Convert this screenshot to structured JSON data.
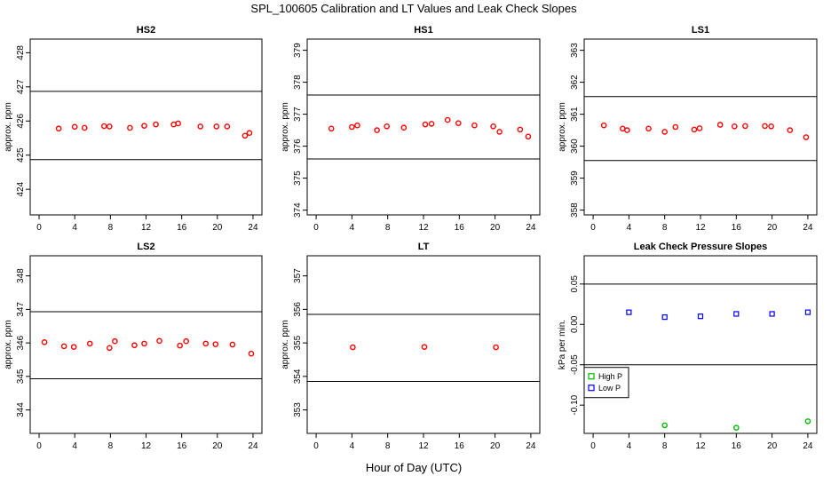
{
  "page": {
    "title": "SPL_100605  Calibration and LT Values and Leak Check Slopes",
    "xlabel": "Hour of Day (UTC)"
  },
  "colors": {
    "cal_points": "#ff0000",
    "high_p": "#00bb00",
    "low_p": "#0000ff",
    "lines": "#000000"
  },
  "chart_data": [
    {
      "type": "scatter",
      "title": "HS2",
      "ylabel": "approx. ppm",
      "xlim": [
        -1,
        25
      ],
      "ylim": [
        423.25,
        428.4
      ],
      "xticks": [
        0,
        4,
        8,
        12,
        16,
        20,
        24
      ],
      "yticks": [
        424,
        425,
        426,
        427,
        428
      ],
      "hlines": [
        426.87,
        424.87
      ],
      "series": [
        {
          "marker": "circle",
          "color": "#ff0000",
          "points": [
            [
              2.2,
              425.78
            ],
            [
              4.0,
              425.83
            ],
            [
              5.1,
              425.8
            ],
            [
              7.3,
              425.85
            ],
            [
              7.9,
              425.84
            ],
            [
              10.2,
              425.8
            ],
            [
              11.8,
              425.86
            ],
            [
              13.1,
              425.9
            ],
            [
              15.1,
              425.9
            ],
            [
              15.6,
              425.93
            ],
            [
              18.1,
              425.84
            ],
            [
              19.9,
              425.84
            ],
            [
              21.1,
              425.84
            ],
            [
              23.1,
              425.57
            ],
            [
              23.6,
              425.65
            ]
          ]
        }
      ]
    },
    {
      "type": "scatter",
      "title": "HS1",
      "ylabel": "approx. ppm",
      "xlim": [
        -1,
        25
      ],
      "ylim": [
        373.85,
        379.35
      ],
      "xticks": [
        0,
        4,
        8,
        12,
        16,
        20,
        24
      ],
      "yticks": [
        374,
        375,
        376,
        377,
        378,
        379
      ],
      "hlines": [
        377.6,
        375.6
      ],
      "series": [
        {
          "marker": "circle",
          "color": "#ff0000",
          "points": [
            [
              1.7,
              376.55
            ],
            [
              4.0,
              376.6
            ],
            [
              4.6,
              376.65
            ],
            [
              6.8,
              376.5
            ],
            [
              7.9,
              376.62
            ],
            [
              9.8,
              376.58
            ],
            [
              12.2,
              376.68
            ],
            [
              12.9,
              376.7
            ],
            [
              14.7,
              376.82
            ],
            [
              15.9,
              376.72
            ],
            [
              17.7,
              376.65
            ],
            [
              19.8,
              376.62
            ],
            [
              20.5,
              376.45
            ],
            [
              22.8,
              376.52
            ],
            [
              23.7,
              376.3
            ]
          ]
        }
      ]
    },
    {
      "type": "scatter",
      "title": "LS1",
      "ylabel": "approx. ppm",
      "xlim": [
        -1,
        25
      ],
      "ylim": [
        357.85,
        363.35
      ],
      "xticks": [
        0,
        4,
        8,
        12,
        16,
        20,
        24
      ],
      "yticks": [
        358,
        359,
        360,
        361,
        362,
        363
      ],
      "hlines": [
        361.55,
        359.55
      ],
      "series": [
        {
          "marker": "circle",
          "color": "#ff0000",
          "points": [
            [
              1.2,
              360.65
            ],
            [
              3.3,
              360.55
            ],
            [
              3.8,
              360.5
            ],
            [
              6.2,
              360.55
            ],
            [
              8.0,
              360.45
            ],
            [
              9.2,
              360.6
            ],
            [
              11.3,
              360.52
            ],
            [
              11.9,
              360.56
            ],
            [
              14.2,
              360.67
            ],
            [
              15.8,
              360.62
            ],
            [
              17.0,
              360.63
            ],
            [
              19.2,
              360.63
            ],
            [
              19.9,
              360.62
            ],
            [
              22.0,
              360.5
            ],
            [
              23.8,
              360.28
            ]
          ]
        }
      ]
    },
    {
      "type": "scatter",
      "title": "LS2",
      "ylabel": "approx. ppm",
      "xlim": [
        -1,
        25
      ],
      "ylim": [
        343.3,
        348.6
      ],
      "xticks": [
        0,
        4,
        8,
        12,
        16,
        20,
        24
      ],
      "yticks": [
        344,
        345,
        346,
        347,
        348
      ],
      "hlines": [
        346.93,
        344.93
      ],
      "series": [
        {
          "marker": "circle",
          "color": "#ff0000",
          "points": [
            [
              0.6,
              346.02
            ],
            [
              2.8,
              345.9
            ],
            [
              3.9,
              345.88
            ],
            [
              5.7,
              345.98
            ],
            [
              7.9,
              345.85
            ],
            [
              8.5,
              346.05
            ],
            [
              10.7,
              345.93
            ],
            [
              11.8,
              345.98
            ],
            [
              13.5,
              346.06
            ],
            [
              15.8,
              345.92
            ],
            [
              16.5,
              346.05
            ],
            [
              18.7,
              345.98
            ],
            [
              19.8,
              345.96
            ],
            [
              21.7,
              345.95
            ],
            [
              23.8,
              345.68
            ]
          ]
        }
      ]
    },
    {
      "type": "scatter",
      "title": "LT",
      "ylabel": "approx. ppm",
      "xlim": [
        -1,
        25
      ],
      "ylim": [
        352.3,
        357.6
      ],
      "xticks": [
        0,
        4,
        8,
        12,
        16,
        20,
        24
      ],
      "yticks": [
        353,
        354,
        355,
        356,
        357
      ],
      "hlines": [
        355.85,
        353.85
      ],
      "series": [
        {
          "marker": "circle",
          "color": "#ff0000",
          "points": [
            [
              4.1,
              354.87
            ],
            [
              12.1,
              354.88
            ],
            [
              20.1,
              354.87
            ]
          ]
        }
      ]
    },
    {
      "type": "scatter",
      "title": "Leak Check Pressure Slopes",
      "ylabel": "kPa per min.",
      "xlim": [
        -1,
        25
      ],
      "ylim": [
        -0.135,
        0.085
      ],
      "xticks": [
        0,
        4,
        8,
        12,
        16,
        20,
        24
      ],
      "yticks": [
        -0.1,
        -0.05,
        0.0,
        0.05
      ],
      "ytick_labels": [
        "-0.10",
        "-0.05",
        "0.00",
        "0.05"
      ],
      "hlines": [
        0.05,
        -0.05
      ],
      "legend": "bottom-left",
      "series": [
        {
          "name": "High P",
          "marker": "circle",
          "color": "#00bb00",
          "points": [
            [
              8.0,
              -0.125
            ],
            [
              16.0,
              -0.128
            ],
            [
              24.0,
              -0.12
            ]
          ]
        },
        {
          "name": "Low P",
          "marker": "square",
          "color": "#0000ff",
          "points": [
            [
              4.0,
              0.015
            ],
            [
              8.0,
              0.009
            ],
            [
              12.0,
              0.01
            ],
            [
              16.0,
              0.013
            ],
            [
              20.0,
              0.013
            ],
            [
              24.0,
              0.015
            ]
          ]
        }
      ]
    }
  ]
}
